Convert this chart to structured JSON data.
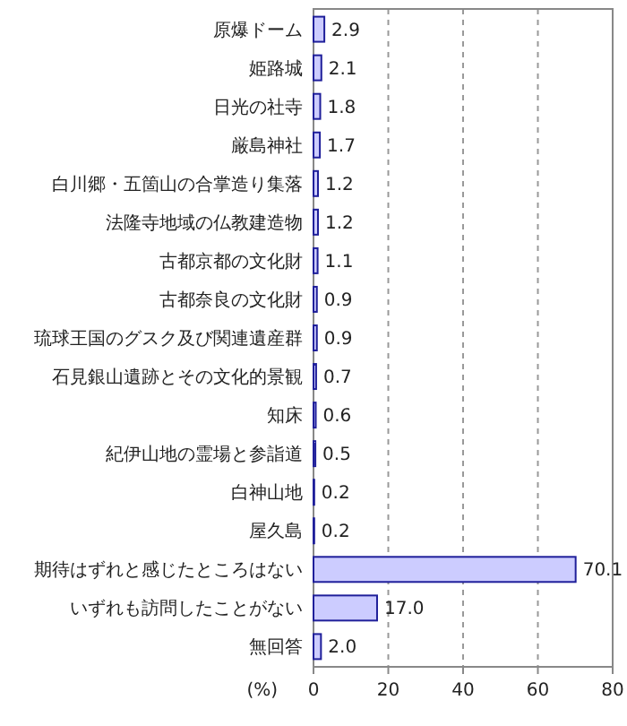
{
  "chart_data": {
    "type": "bar",
    "orientation": "horizontal",
    "xlabel": "(%)",
    "categories": [
      "原爆ドーム",
      "姫路城",
      "日光の社寺",
      "厳島神社",
      "白川郷・五箇山の合掌造り集落",
      "法隆寺地域の仏教建造物",
      "古都京都の文化財",
      "古都奈良の文化財",
      "琉球王国のグスク及び関連遺産群",
      "石見銀山遺跡とその文化的景観",
      "知床",
      "紀伊山地の霊場と参詣道",
      "白神山地",
      "屋久島",
      "期待はずれと感じたところはない",
      "いずれも訪問したことがない",
      "無回答"
    ],
    "values": [
      2.9,
      2.1,
      1.8,
      1.7,
      1.2,
      1.2,
      1.1,
      0.9,
      0.9,
      0.7,
      0.6,
      0.5,
      0.2,
      0.2,
      70.1,
      17.0,
      2.0
    ],
    "value_labels": [
      "2.9",
      "2.1",
      "1.8",
      "1.7",
      "1.2",
      "1.2",
      "1.1",
      "0.9",
      "0.9",
      "0.7",
      "0.6",
      "0.5",
      "0.2",
      "0.2",
      "70.1",
      "17.0",
      "2.0"
    ],
    "color": "#ccccff",
    "xlim": [
      0,
      80
    ],
    "xticks": [
      0,
      20,
      40,
      60,
      80
    ],
    "grid": "x"
  }
}
